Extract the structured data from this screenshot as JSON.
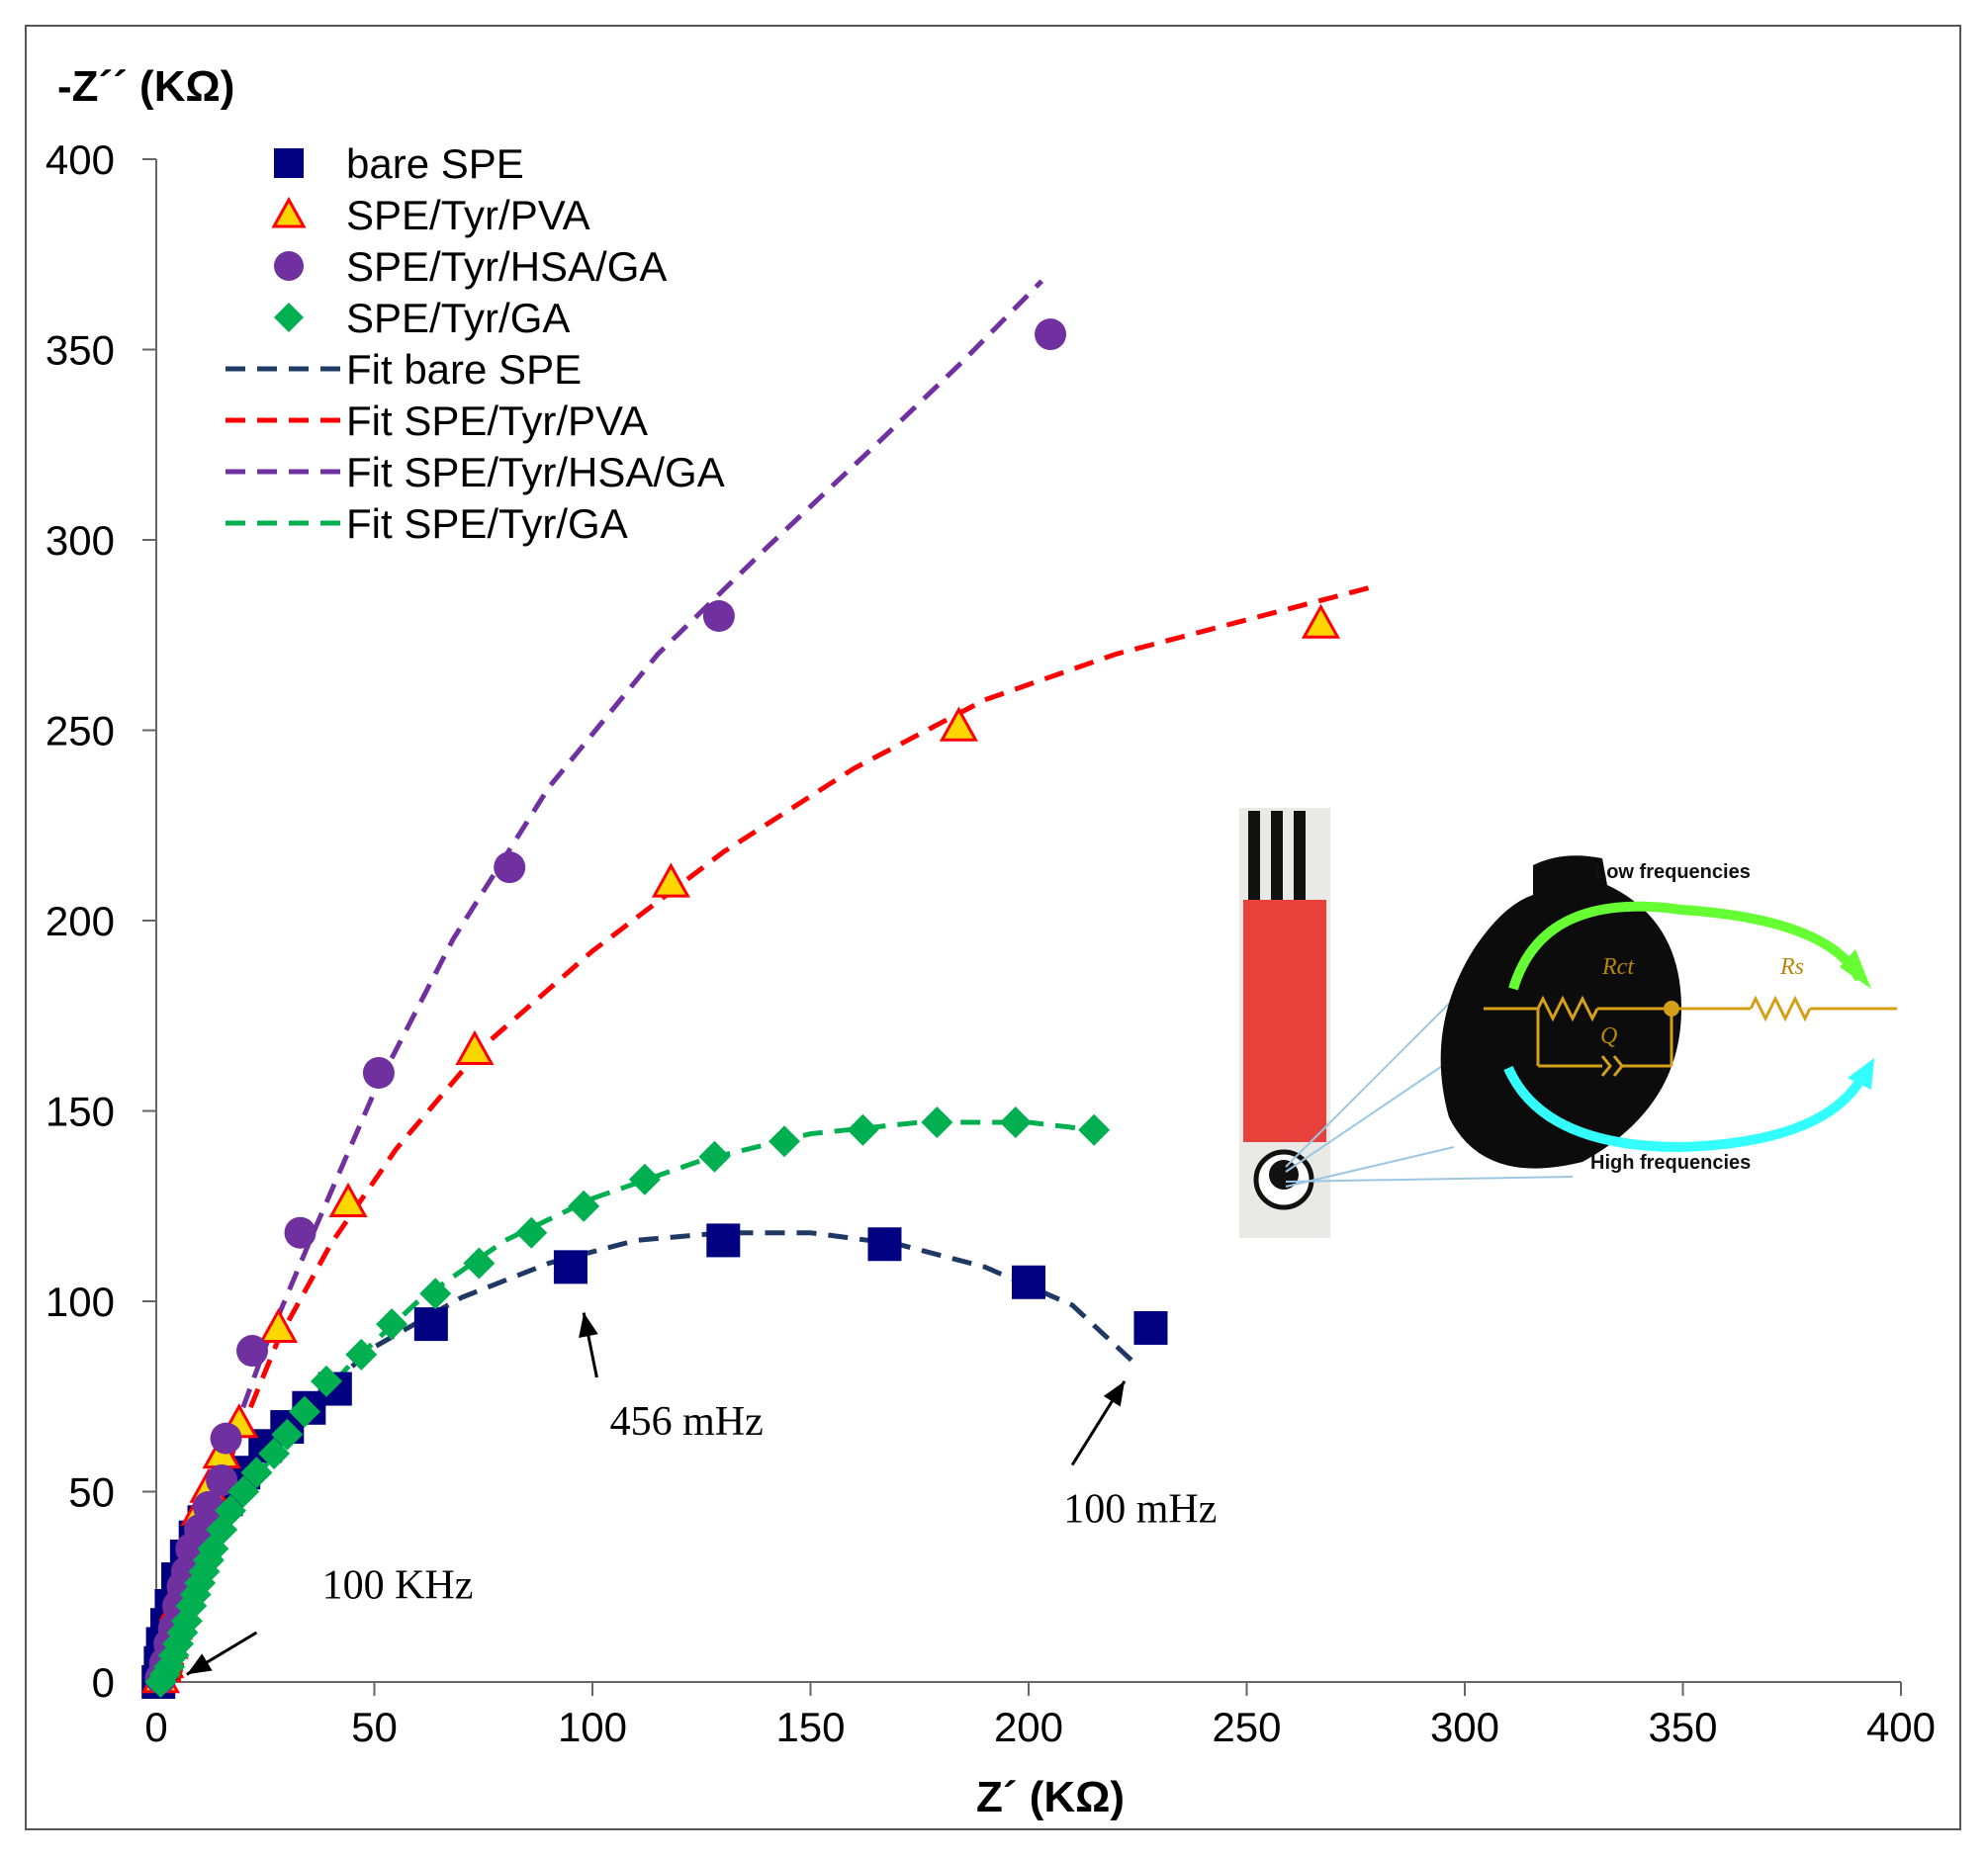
{
  "chart_data": {
    "type": "scatter",
    "xlabel": "Z´ (KΩ)",
    "ylabel": "-Z´´ (KΩ)",
    "xlim": [
      0,
      400
    ],
    "ylim": [
      0,
      400
    ],
    "xticks": [
      0,
      50,
      100,
      150,
      200,
      250,
      300,
      350,
      400
    ],
    "yticks": [
      0,
      50,
      100,
      150,
      200,
      250,
      300,
      350,
      400
    ],
    "grid": false,
    "legend_position": "top-left",
    "series": [
      {
        "name": "bare SPE",
        "kind": "points",
        "marker": "square",
        "color": "#000080",
        "points": [
          [
            0.5,
            0
          ],
          [
            1,
            5
          ],
          [
            1.5,
            10
          ],
          [
            2.5,
            15
          ],
          [
            3.5,
            20
          ],
          [
            5,
            27
          ],
          [
            7,
            33
          ],
          [
            9,
            38
          ],
          [
            11,
            42
          ],
          [
            13,
            45
          ],
          [
            16,
            48
          ],
          [
            20,
            55
          ],
          [
            25,
            62
          ],
          [
            30,
            67
          ],
          [
            35,
            72
          ],
          [
            41,
            77
          ],
          [
            63,
            94
          ],
          [
            95,
            109
          ],
          [
            130,
            116
          ],
          [
            167,
            115
          ],
          [
            200,
            105
          ],
          [
            228,
            93
          ]
        ]
      },
      {
        "name": "SPE/Tyr/PVA",
        "kind": "points",
        "marker": "triangle",
        "color": "#ffd700",
        "stroke": "#ff0000",
        "points": [
          [
            1,
            1
          ],
          [
            2,
            5
          ],
          [
            3,
            10
          ],
          [
            4,
            15
          ],
          [
            5,
            20
          ],
          [
            6,
            25
          ],
          [
            7,
            30
          ],
          [
            9,
            37
          ],
          [
            10,
            45
          ],
          [
            12,
            51
          ],
          [
            15,
            60
          ],
          [
            19,
            68
          ],
          [
            28,
            93
          ],
          [
            44,
            126
          ],
          [
            73,
            166
          ],
          [
            118,
            210
          ],
          [
            184,
            251
          ],
          [
            267,
            278
          ]
        ]
      },
      {
        "name": "SPE/Tyr/HSA/GA",
        "kind": "points",
        "marker": "circle",
        "color": "#7030a0",
        "points": [
          [
            1,
            1
          ],
          [
            2,
            5
          ],
          [
            3,
            10
          ],
          [
            4,
            14
          ],
          [
            5,
            20
          ],
          [
            6,
            25
          ],
          [
            7,
            29
          ],
          [
            8,
            35
          ],
          [
            10,
            40
          ],
          [
            12,
            46
          ],
          [
            15,
            53
          ],
          [
            16,
            64
          ],
          [
            22,
            87
          ],
          [
            33,
            118
          ],
          [
            51,
            160
          ],
          [
            81,
            214
          ],
          [
            129,
            280
          ],
          [
            205,
            354
          ]
        ]
      },
      {
        "name": "SPE/Tyr/GA",
        "kind": "points",
        "marker": "diamond",
        "color": "#00b050",
        "points": [
          [
            1,
            0
          ],
          [
            2,
            2
          ],
          [
            3,
            4
          ],
          [
            4,
            7
          ],
          [
            5,
            10
          ],
          [
            6,
            13
          ],
          [
            7,
            16
          ],
          [
            8,
            20
          ],
          [
            9,
            23
          ],
          [
            10,
            26
          ],
          [
            11,
            29
          ],
          [
            12,
            32
          ],
          [
            13,
            35
          ],
          [
            15,
            40
          ],
          [
            17,
            45
          ],
          [
            20,
            50
          ],
          [
            23,
            55
          ],
          [
            27,
            60
          ],
          [
            30,
            65
          ],
          [
            34,
            71
          ],
          [
            39,
            79
          ],
          [
            47,
            86
          ],
          [
            54,
            94
          ],
          [
            64,
            102
          ],
          [
            74,
            110
          ],
          [
            86,
            118
          ],
          [
            98,
            125
          ],
          [
            112,
            132
          ],
          [
            128,
            138
          ],
          [
            144,
            142
          ],
          [
            162,
            145
          ],
          [
            179,
            147
          ],
          [
            197,
            147
          ],
          [
            215,
            145
          ]
        ]
      },
      {
        "name": "Fit bare SPE",
        "kind": "dashed-line",
        "color": "#1f3864",
        "points": [
          [
            1,
            0
          ],
          [
            5,
            22
          ],
          [
            15,
            47
          ],
          [
            30,
            68
          ],
          [
            50,
            88
          ],
          [
            70,
            101
          ],
          [
            90,
            110
          ],
          [
            110,
            116
          ],
          [
            130,
            118
          ],
          [
            150,
            118
          ],
          [
            170,
            115
          ],
          [
            190,
            109
          ],
          [
            210,
            99
          ],
          [
            225,
            83
          ]
        ]
      },
      {
        "name": "Fit SPE/Tyr/PVA",
        "kind": "dashed-line",
        "color": "#ff0000",
        "points": [
          [
            5,
            0
          ],
          [
            8,
            18
          ],
          [
            12,
            40
          ],
          [
            18,
            62
          ],
          [
            28,
            90
          ],
          [
            40,
            115
          ],
          [
            55,
            140
          ],
          [
            75,
            167
          ],
          [
            100,
            192
          ],
          [
            130,
            218
          ],
          [
            160,
            240
          ],
          [
            190,
            258
          ],
          [
            220,
            270
          ],
          [
            250,
            279
          ],
          [
            280,
            288
          ]
        ]
      },
      {
        "name": "Fit SPE/Tyr/HSA/GA",
        "kind": "dashed-line",
        "color": "#7030a0",
        "points": [
          [
            3,
            0
          ],
          [
            6,
            18
          ],
          [
            10,
            38
          ],
          [
            16,
            60
          ],
          [
            25,
            88
          ],
          [
            36,
            118
          ],
          [
            50,
            155
          ],
          [
            68,
            195
          ],
          [
            90,
            235
          ],
          [
            115,
            270
          ],
          [
            140,
            298
          ],
          [
            165,
            325
          ],
          [
            185,
            347
          ],
          [
            203,
            368
          ]
        ]
      },
      {
        "name": "Fit SPE/Tyr/GA",
        "kind": "dashed-line",
        "color": "#00b050",
        "points": [
          [
            3,
            0
          ],
          [
            6,
            10
          ],
          [
            10,
            22
          ],
          [
            15,
            38
          ],
          [
            22,
            52
          ],
          [
            32,
            68
          ],
          [
            45,
            84
          ],
          [
            60,
            100
          ],
          [
            80,
            116
          ],
          [
            100,
            127
          ],
          [
            125,
            137
          ],
          [
            150,
            144
          ],
          [
            175,
            147
          ],
          [
            200,
            147
          ],
          [
            215,
            145
          ]
        ]
      }
    ],
    "annotations": [
      {
        "text": "100 KHz",
        "text_at": [
          38,
          22
        ],
        "arrow_from": [
          23,
          13
        ],
        "arrow_to": [
          7,
          2
        ]
      },
      {
        "text": "456 mHz",
        "text_at": [
          104,
          65
        ],
        "arrow_from": [
          101,
          80
        ],
        "arrow_to": [
          98,
          97
        ]
      },
      {
        "text": "100 mHz",
        "text_at": [
          208,
          42
        ],
        "arrow_from": [
          210,
          57
        ],
        "arrow_to": [
          222,
          79
        ]
      }
    ]
  },
  "inset": {
    "low_label": "Low frequencies",
    "high_label": "High frequencies",
    "rct_label": "Rct",
    "rs_label": "Rs",
    "q_label": "Q",
    "colors": {
      "strip_red": "#e8413b",
      "circuit": "#d4a017",
      "low_arrow": "#66ff33",
      "high_arrow": "#33ffff"
    }
  }
}
